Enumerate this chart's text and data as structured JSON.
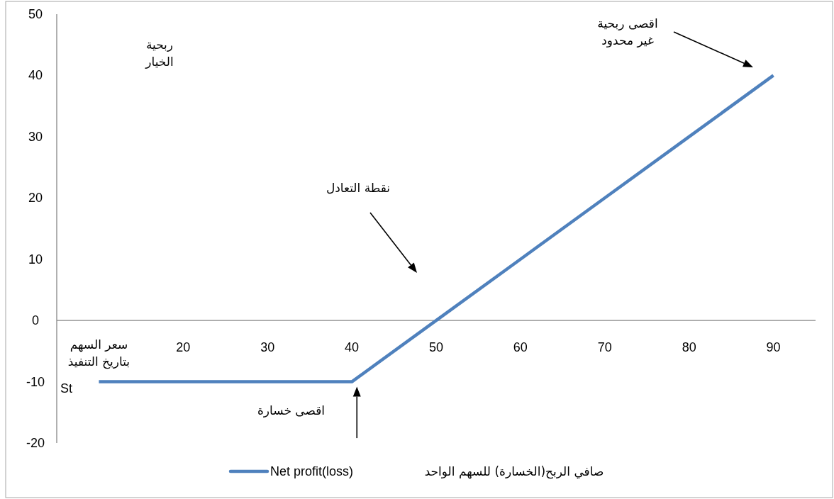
{
  "chart_data": {
    "type": "line",
    "xlabel": "سعر السهم بتاريخ التنفيذ",
    "x": [
      10,
      20,
      30,
      40,
      50,
      60,
      70,
      80,
      90
    ],
    "series": [
      {
        "name": "Net profit(loss)",
        "color": "#4f81bd",
        "values": [
          -10,
          -10,
          -10,
          -10,
          0,
          10,
          20,
          30,
          40
        ]
      }
    ],
    "xlim": [
      5,
      95
    ],
    "xticks": [
      20,
      30,
      40,
      50,
      60,
      70,
      80,
      90
    ],
    "ylim": [
      -20,
      50
    ],
    "yticks": [
      -20,
      -10,
      0,
      10,
      20,
      30,
      40,
      50
    ],
    "grid": false,
    "legend": "bottom",
    "marker": "none",
    "line_style": "solid",
    "annotations": [
      "اقصى ربحية غير محدود",
      "نقطة التعادل",
      {
        "text": "اقصى خسارة",
        "x": 40,
        "y": -10
      },
      "ربحية الخيار",
      "St",
      "صافي الربح(الخسارة) للسهم الواحد"
    ]
  }
}
